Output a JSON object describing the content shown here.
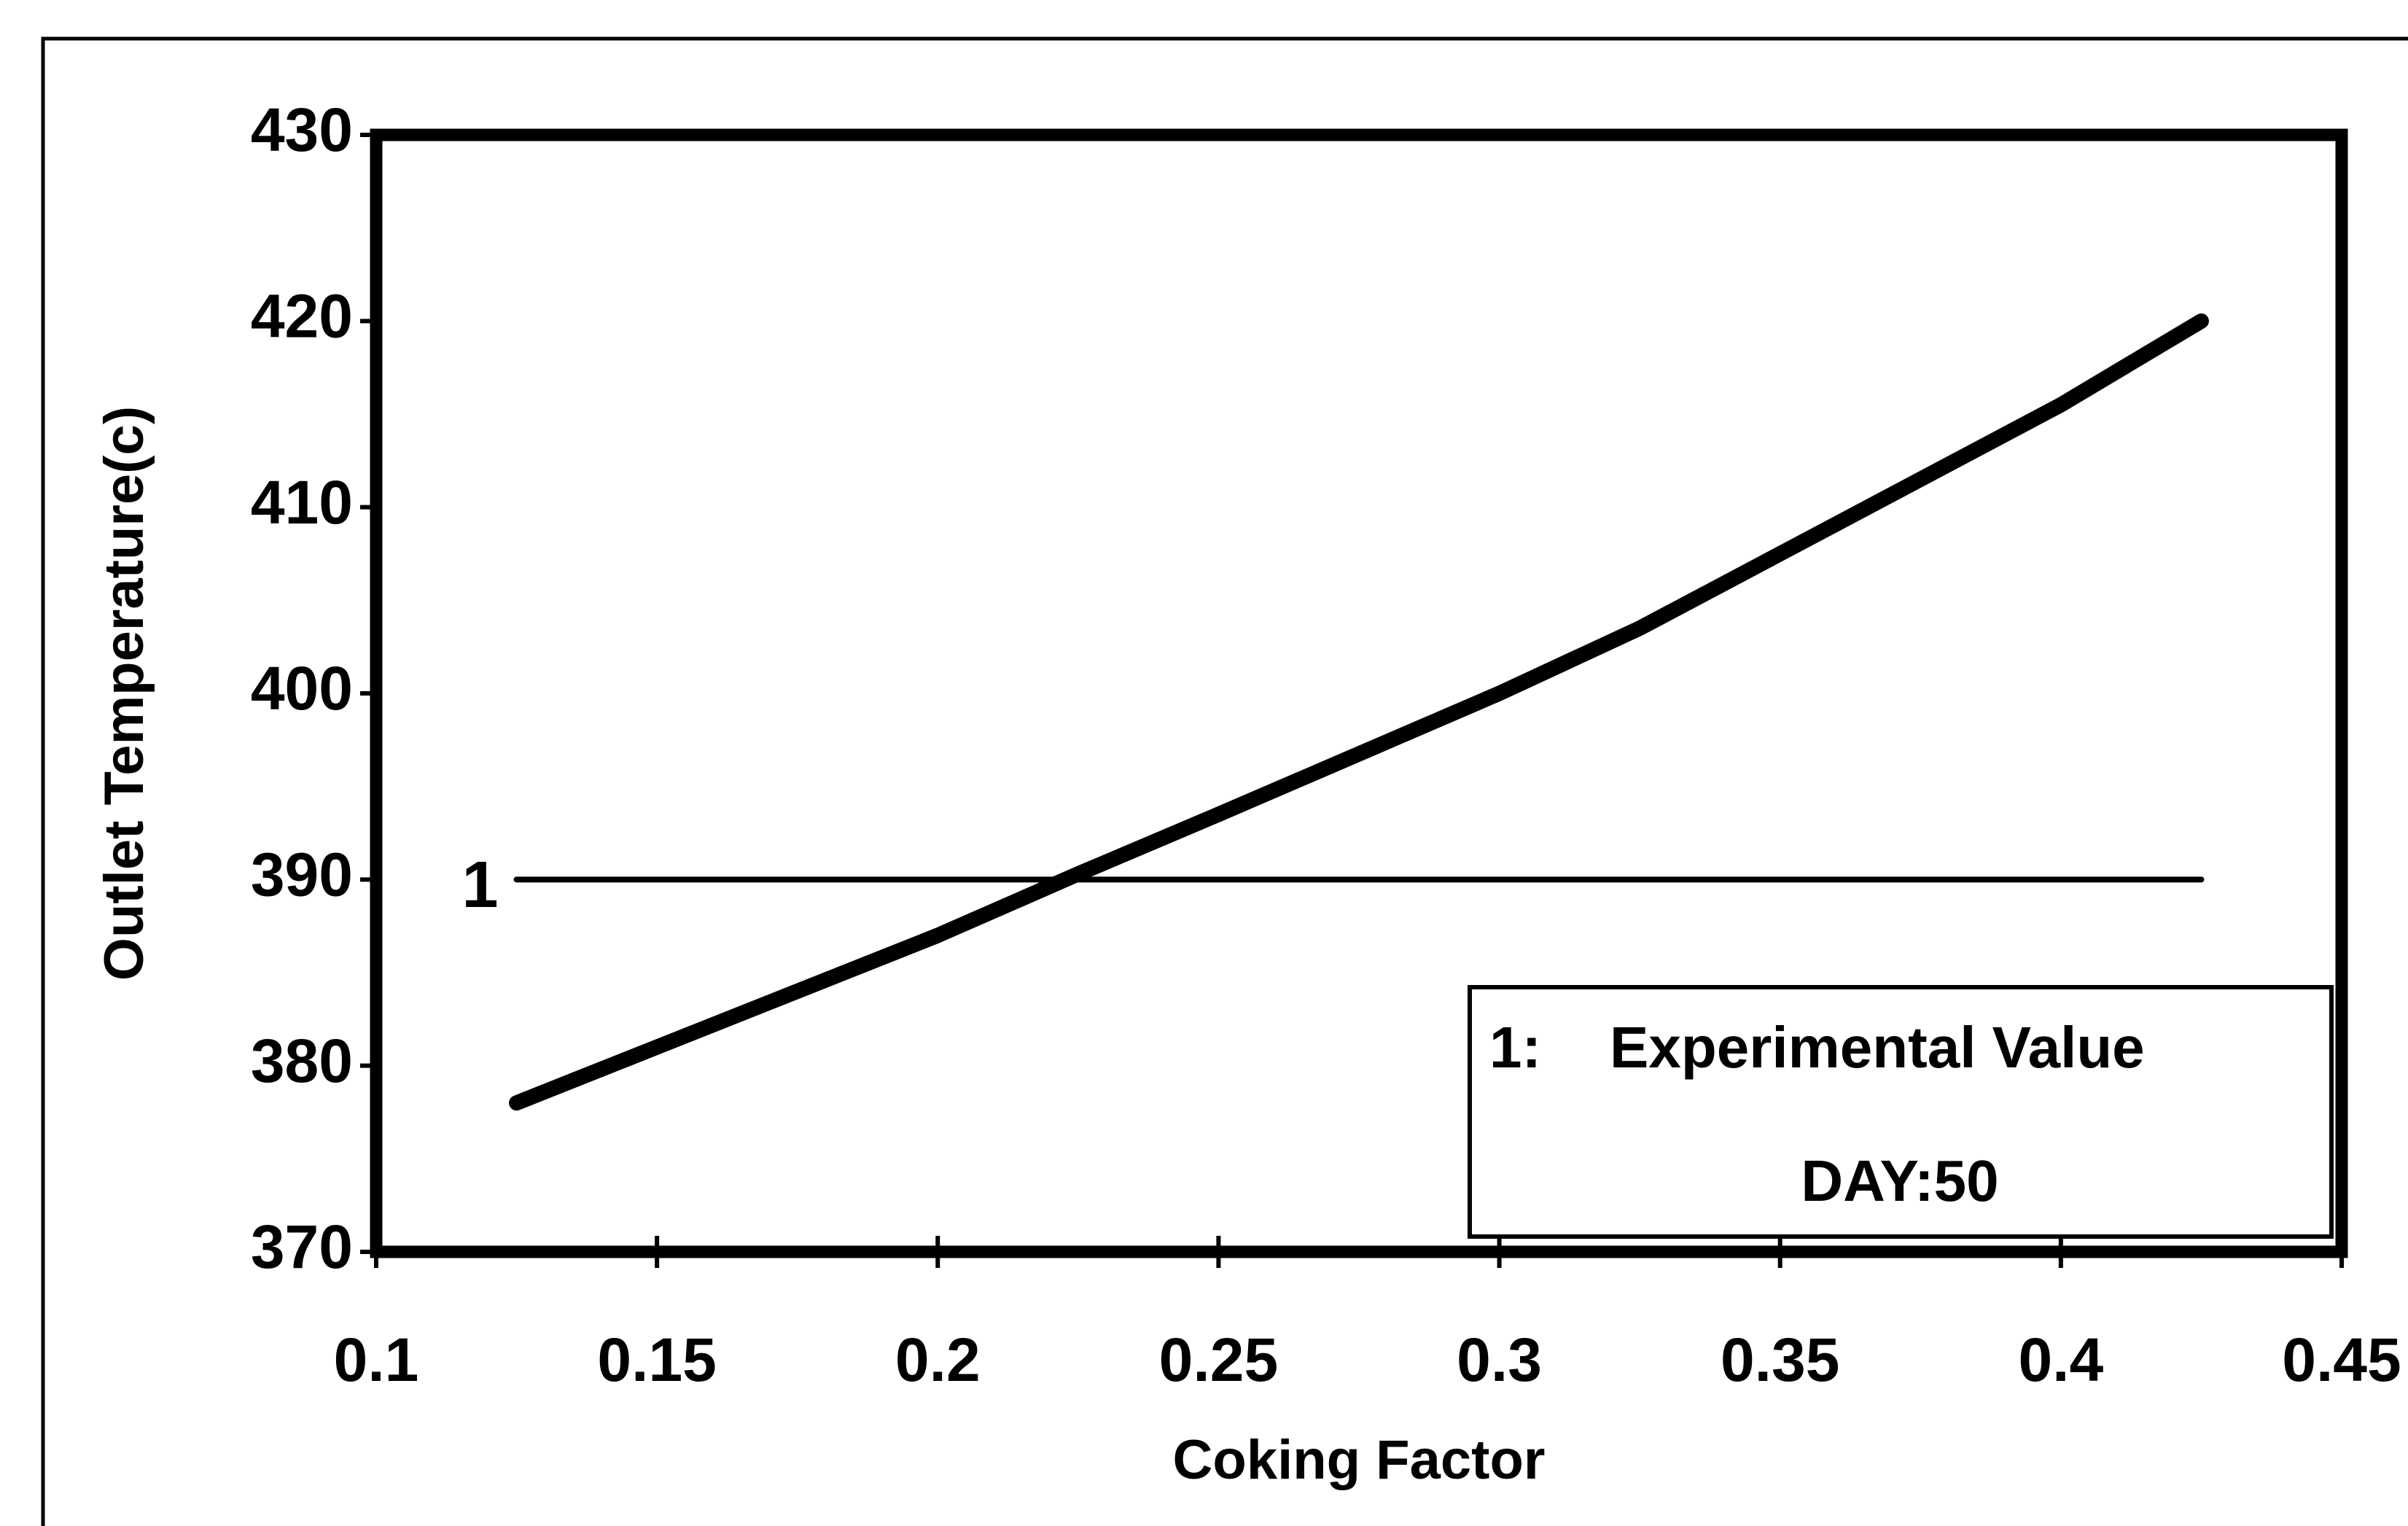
{
  "chart_data": {
    "type": "line",
    "xlabel": "Coking Factor",
    "ylabel": "Outlet Temperature(c)",
    "xlim": [
      0.1,
      0.45
    ],
    "xticks": [
      0.1,
      0.15,
      0.2,
      0.25,
      0.3,
      0.35,
      0.4,
      0.45
    ],
    "ylim": [
      370,
      430
    ],
    "yticks": [
      370,
      380,
      390,
      400,
      410,
      420,
      430
    ],
    "series": [
      {
        "color": "#000000",
        "x": [
          0.125,
          0.15,
          0.2,
          0.225,
          0.25,
          0.3,
          0.325,
          0.35,
          0.4,
          0.425
        ],
        "values": [
          378,
          381,
          387,
          390.3,
          393.5,
          400,
          403.5,
          407.5,
          415.5,
          420
        ]
      },
      {
        "name": "1",
        "color": "#000000",
        "x": [
          0.125,
          0.425
        ],
        "values": [
          390,
          390
        ]
      }
    ],
    "legend": {
      "key": "1:",
      "label": "Experimental Value",
      "note": "DAY:50"
    }
  }
}
